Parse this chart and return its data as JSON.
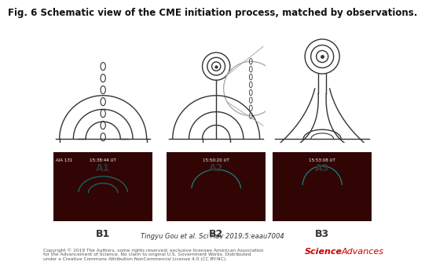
{
  "title": "Fig. 6 Schematic view of the CME initiation process, matched by observations.",
  "title_fontsize": 8.5,
  "panel_labels_top": [
    "A1",
    "A2",
    "A3"
  ],
  "panel_labels_bottom": [
    "B1",
    "B2",
    "B3"
  ],
  "citation": "Tingyu Gou et al. Sci Adv 2019;5:eaau7004",
  "copyright": "Copyright © 2019 The Authors, some rights reserved; exclusive licensee American Association\nfor the Advancement of Science. No claim to original U.S. Government Works. Distributed\nunder a Creative Commons Attribution NonCommercial License 4.0 (CC BY-NC).",
  "journal": "Science",
  "journal2": "Advances",
  "bg_color": "#ffffff",
  "schematic_line_color": "#333333",
  "obs_bg_color": "#3a0000",
  "obs_time_labels": [
    "AIA 131",
    "15:38:44 UT",
    "15:50:20 UT",
    "15:53:08 UT"
  ]
}
